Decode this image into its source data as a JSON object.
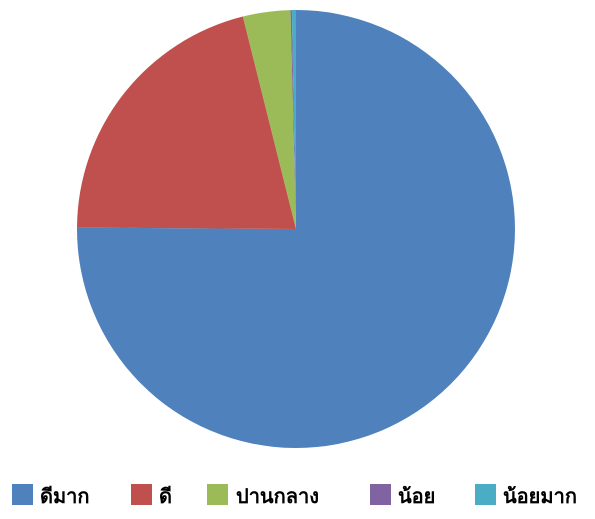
{
  "chart_data": {
    "type": "pie",
    "title": "",
    "categories": [
      "ดีมาก",
      "ดี",
      "ปานกลาง",
      "น้อย",
      "น้อยมาก"
    ],
    "values": [
      75.1,
      21.0,
      3.5,
      0.1,
      0.3
    ],
    "colors": [
      "#4F81BD",
      "#C0504D",
      "#9BBB59",
      "#8064A2",
      "#4BACC6"
    ],
    "start_angle_deg": 0,
    "direction": "clockwise",
    "legend_position": "bottom"
  }
}
